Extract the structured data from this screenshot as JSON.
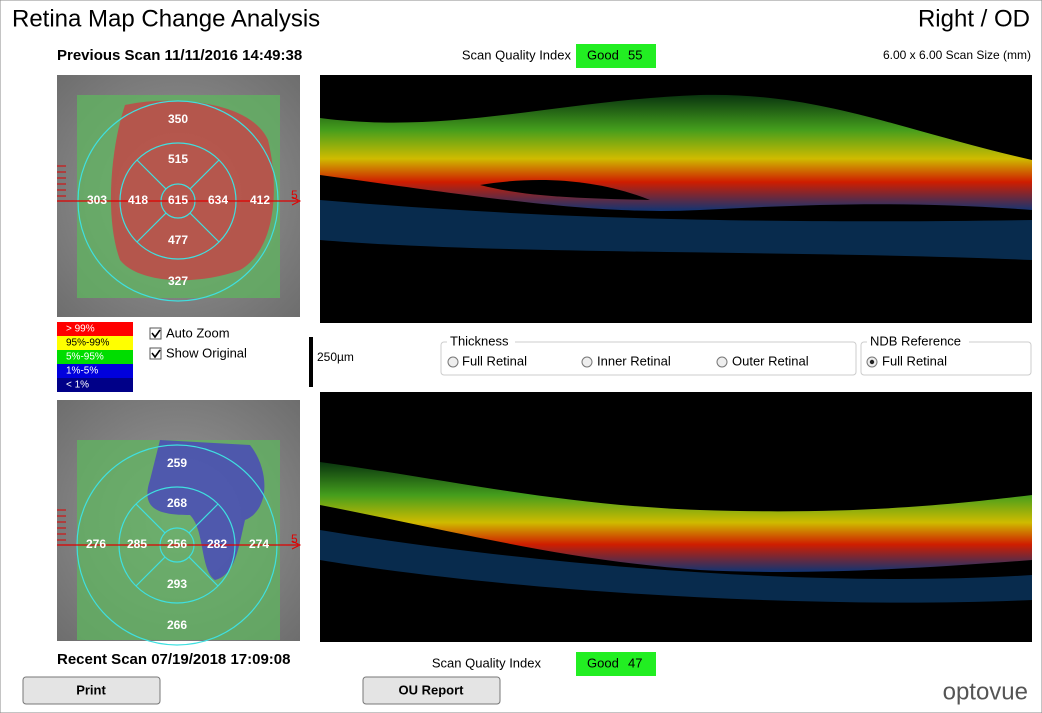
{
  "header": {
    "title": "Retina Map Change Analysis",
    "eye": "Right / OD",
    "scan_size": "6.00 x 6.00 Scan Size (mm)"
  },
  "previous_scan": {
    "label": "Previous Scan 11/11/2016 14:49:38",
    "quality_label": "Scan Quality Index",
    "quality_status": "Good",
    "quality_score": 55,
    "map_values": [
      350,
      515,
      303,
      418,
      615,
      634,
      412,
      477,
      327
    ],
    "marker": 5
  },
  "recent_scan": {
    "label": "Recent Scan 07/19/2018 17:09:08",
    "quality_label": "Scan Quality Index",
    "quality_status": "Good",
    "quality_score": 47,
    "map_values": [
      259,
      268,
      276,
      285,
      256,
      282,
      274,
      293,
      266
    ],
    "marker": 5
  },
  "legend": [
    "> 99%",
    "95%-99%",
    "5%-95%",
    "1%-5%",
    "< 1%"
  ],
  "options": [
    "Auto Zoom",
    "Show Original"
  ],
  "scale_bar": "250µm",
  "thickness": {
    "title": "Thickness",
    "options": [
      "Full Retinal",
      "Inner Retinal",
      "Outer Retinal"
    ]
  },
  "ndb_reference": {
    "title": "NDB Reference",
    "options": [
      "Full Retinal"
    ]
  },
  "buttons": [
    "Print",
    "OU Report"
  ],
  "logo": "optovue"
}
